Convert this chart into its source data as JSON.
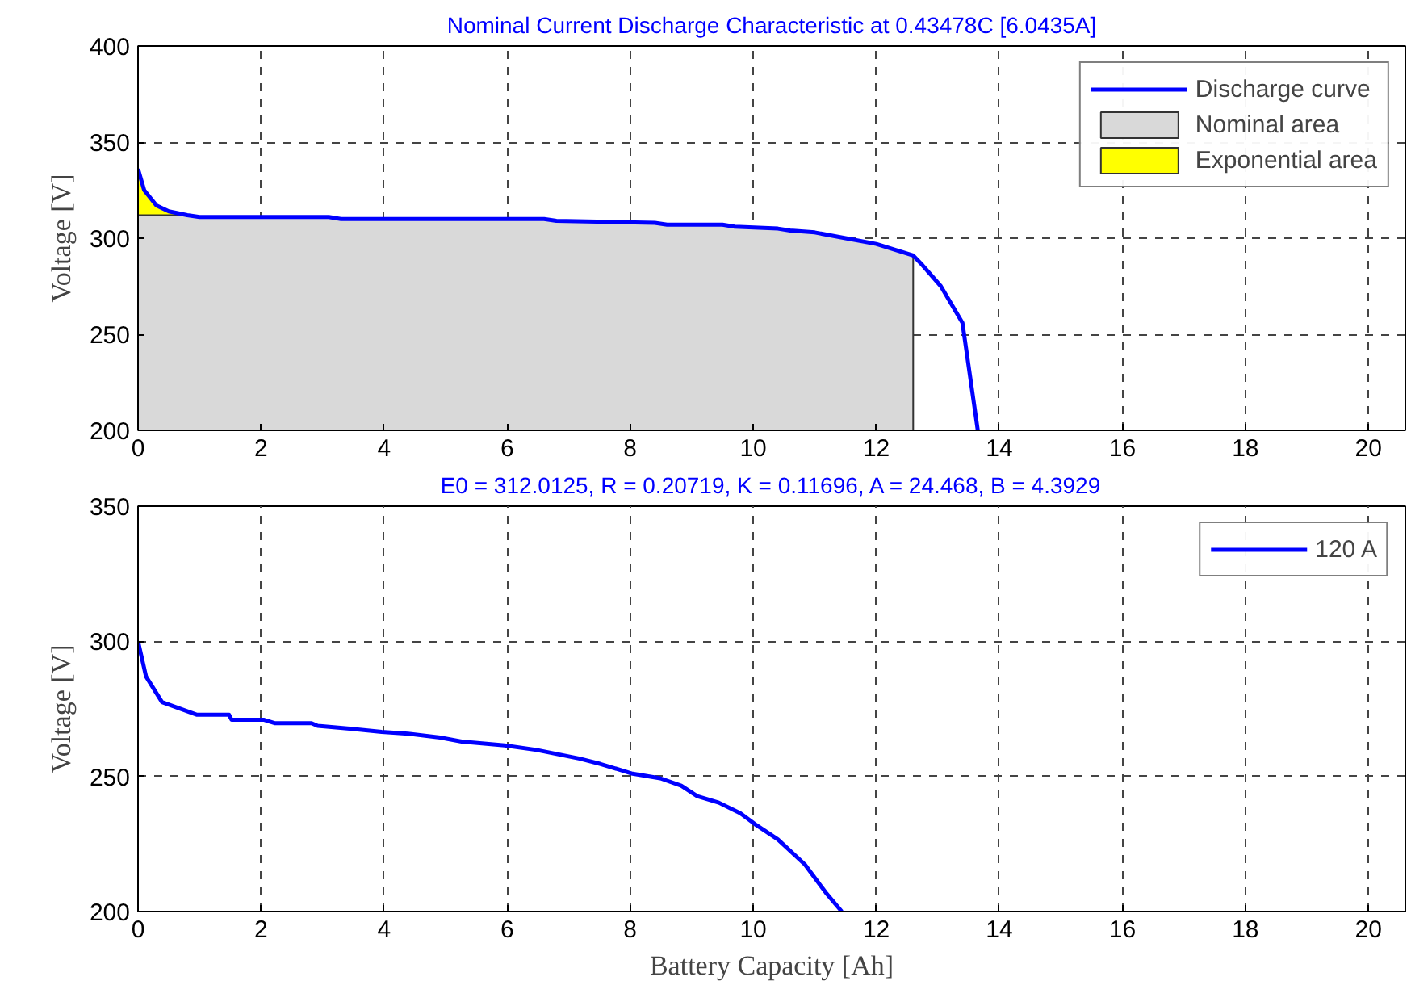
{
  "chart_data": [
    {
      "type": "line",
      "title": "Nominal Current Discharge Characteristic at 0.43478C [6.0435A]",
      "ylabel": "Voltage [V]",
      "xlim": [
        0,
        20.6
      ],
      "xticks": [
        0,
        2,
        4,
        6,
        8,
        10,
        12,
        14,
        16,
        18,
        20
      ],
      "ylim": [
        200,
        400
      ],
      "yticks": [
        200,
        250,
        300,
        350,
        400
      ],
      "grid": true,
      "legend": "top right",
      "series": [
        {
          "name": "Discharge curve",
          "type": "line",
          "color": "#0000ff",
          "x": [
            0,
            0.1,
            0.3,
            0.5,
            0.8,
            1,
            3.1,
            3.3,
            6.6,
            6.8,
            8.4,
            8.6,
            9.5,
            9.7,
            10.4,
            10.6,
            11,
            11.5,
            12,
            12.6,
            12.75,
            13.05,
            13.4,
            13.65
          ],
          "values": [
            336,
            325,
            317,
            314,
            312,
            311,
            311,
            310,
            310,
            309,
            308,
            307,
            307,
            306,
            305,
            304,
            303,
            300,
            297,
            291,
            286,
            275,
            256,
            200
          ]
        },
        {
          "name": "Nominal area",
          "type": "area",
          "color": "#d9d9d9",
          "x": [
            0,
            0.8,
            1,
            3.1,
            3.3,
            6.6,
            6.8,
            8.4,
            8.6,
            9.5,
            9.7,
            10.4,
            10.6,
            11,
            11.5,
            12,
            12.6
          ],
          "values": [
            312,
            312,
            311,
            311,
            310,
            310,
            309,
            308,
            307,
            307,
            306,
            305,
            304,
            303,
            300,
            297,
            291
          ]
        },
        {
          "name": "Exponential area",
          "type": "area",
          "color": "#ffff00",
          "x": [
            0,
            0.1,
            0.3,
            0.5,
            0.8
          ],
          "values": [
            336,
            325,
            317,
            314,
            312
          ]
        }
      ]
    },
    {
      "type": "line",
      "title": "E0 = 312.0125, R = 0.20719, K = 0.11696, A = 24.468, B = 4.3929",
      "xlabel": "Battery Capacity [Ah]",
      "ylabel": "Voltage [V]",
      "xlim": [
        0,
        20.6
      ],
      "xticks": [
        0,
        2,
        4,
        6,
        8,
        10,
        12,
        14,
        16,
        18,
        20
      ],
      "ylim": [
        200,
        350
      ],
      "yticks": [
        200,
        250,
        300,
        350
      ],
      "grid": true,
      "legend": "top right",
      "series": [
        {
          "name": "120 A",
          "color": "#0000ff",
          "x": [
            0,
            0.13,
            0.39,
            0.96,
            1.48,
            1.52,
            2.04,
            2.22,
            2.82,
            2.92,
            3.44,
            3.96,
            4.39,
            4.91,
            5.26,
            5.96,
            6.48,
            7.18,
            7.52,
            8.04,
            8.49,
            8.83,
            9.09,
            9.44,
            9.79,
            10.05,
            10.4,
            10.84,
            11.18,
            11.44
          ],
          "values": [
            300,
            287,
            277.5,
            272.8,
            272.8,
            271,
            271,
            269.7,
            269.7,
            268.7,
            267.7,
            266.5,
            265.8,
            264.4,
            262.9,
            261.5,
            259.8,
            256.6,
            254.6,
            251,
            249.3,
            246.6,
            242.7,
            240.3,
            236.4,
            232,
            226.7,
            217.4,
            207,
            200
          ]
        }
      ]
    }
  ]
}
